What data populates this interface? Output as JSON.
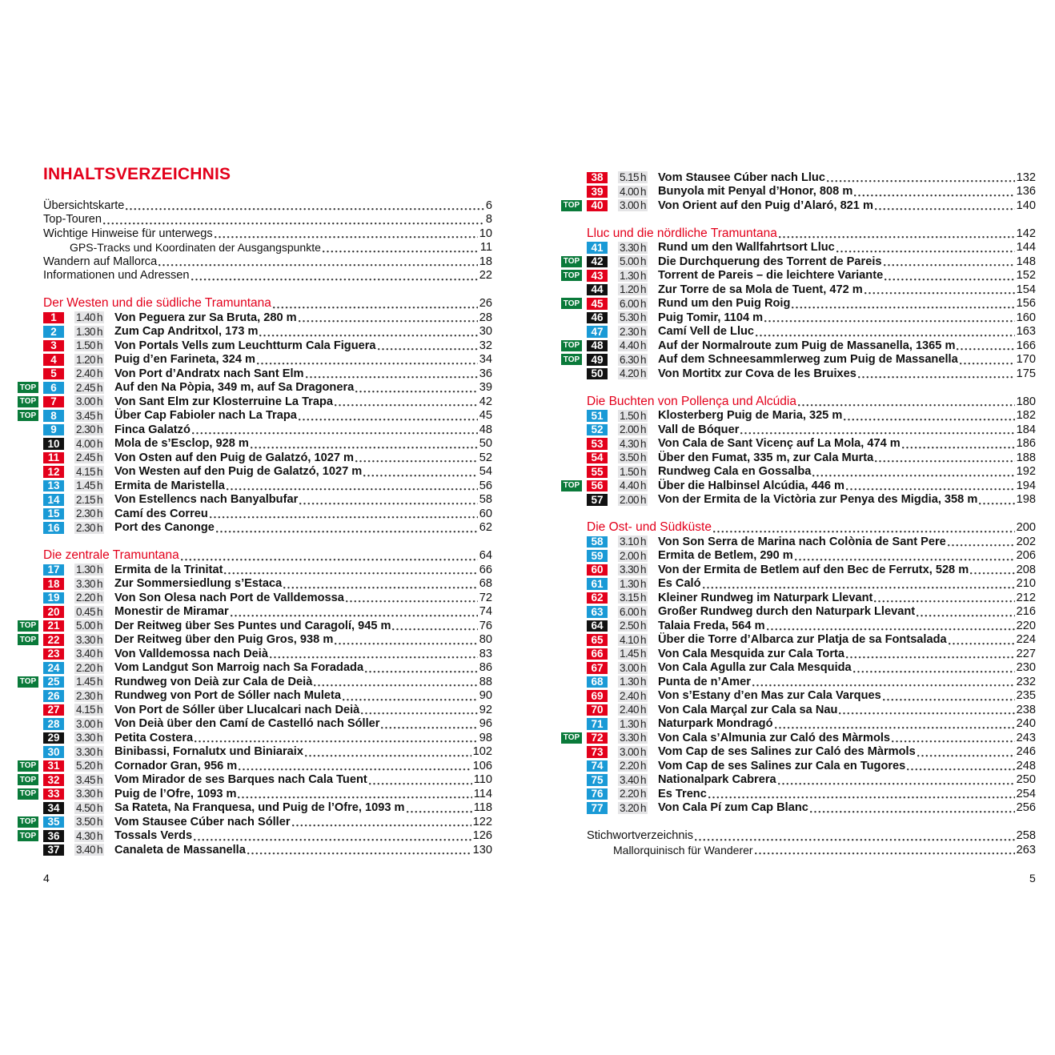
{
  "title": "INHALTSVERZEICHNIS",
  "colors": {
    "red": "#e3001b",
    "blue": "#1a9ad6",
    "black": "#111111",
    "top": "#0a7a3a",
    "section": "#e3001b"
  },
  "top_label": "TOP",
  "time_unit": "h",
  "page_numbers": {
    "left": "4",
    "right": "5"
  },
  "left_column": [
    {
      "kind": "intro",
      "text": "Übersichtskarte",
      "page": "6"
    },
    {
      "kind": "intro",
      "text": "Top-Touren",
      "page": "8"
    },
    {
      "kind": "intro",
      "text": "Wichtige Hinweise für unterwegs",
      "page": "10"
    },
    {
      "kind": "sub",
      "text": "GPS-Tracks und Koordinaten der Ausgangspunkte",
      "page": "11"
    },
    {
      "kind": "intro",
      "text": "Wandern auf Mallorca",
      "page": "18"
    },
    {
      "kind": "intro",
      "text": "Informationen und Adressen",
      "page": "22"
    },
    {
      "kind": "blank"
    },
    {
      "kind": "section",
      "text": "Der Westen und die südliche Tramuntana",
      "page": "26"
    },
    {
      "n": "1",
      "c": "red",
      "time": "1.40",
      "text": "Von Peguera zur Sa Bruta, 280 m",
      "page": "28"
    },
    {
      "n": "2",
      "c": "blue",
      "time": "1.30",
      "text": "Zum Cap Andritxol, 173 m",
      "page": "30"
    },
    {
      "n": "3",
      "c": "red",
      "time": "1.50",
      "text": "Von Portals Vells zum Leuchtturm Cala Figuera",
      "page": "32"
    },
    {
      "n": "4",
      "c": "red",
      "time": "1.20",
      "text": "Puig d’en Farineta, 324 m",
      "page": "34"
    },
    {
      "n": "5",
      "c": "red",
      "time": "2.40",
      "text": "Von Port d’Andratx nach Sant Elm",
      "page": "36"
    },
    {
      "n": "6",
      "c": "blue",
      "top": true,
      "time": "2.45",
      "text": "Auf den Na Pòpia, 349 m, auf Sa Dragonera",
      "page": "39"
    },
    {
      "n": "7",
      "c": "red",
      "top": true,
      "time": "3.00",
      "text": "Von Sant Elm zur Klosterruine La Trapa",
      "page": "42"
    },
    {
      "n": "8",
      "c": "blue",
      "top": true,
      "time": "3.45",
      "text": "Über Cap Fabioler nach La Trapa",
      "page": "45"
    },
    {
      "n": "9",
      "c": "blue",
      "time": "2.30",
      "text": "Finca Galatzó",
      "page": "48"
    },
    {
      "n": "10",
      "c": "black",
      "time": "4.00",
      "text": "Mola de s’Esclop, 928 m",
      "page": "50"
    },
    {
      "n": "11",
      "c": "red",
      "time": "2.45",
      "text": "Von Osten auf den Puig de Galatzó, 1027 m",
      "page": "52"
    },
    {
      "n": "12",
      "c": "red",
      "time": "4.15",
      "text": "Von Westen auf den Puig de Galatzó, 1027 m",
      "page": "54"
    },
    {
      "n": "13",
      "c": "blue",
      "time": "1.45",
      "text": "Ermita de Maristella",
      "page": "56"
    },
    {
      "n": "14",
      "c": "blue",
      "time": "2.15",
      "text": "Von Estellencs nach Banyalbufar",
      "page": "58"
    },
    {
      "n": "15",
      "c": "blue",
      "time": "2.30",
      "text": "Camí des Correu",
      "page": "60"
    },
    {
      "n": "16",
      "c": "blue",
      "time": "2.30",
      "text": "Port des Canonge",
      "page": "62"
    },
    {
      "kind": "blank"
    },
    {
      "kind": "section",
      "text": "Die zentrale Tramuntana",
      "page": "64"
    },
    {
      "n": "17",
      "c": "blue",
      "time": "1.30",
      "text": "Ermita de la Trinitat",
      "page": "66"
    },
    {
      "n": "18",
      "c": "red",
      "time": "3.30",
      "text": "Zur Sommersiedlung s’Estaca",
      "page": "68"
    },
    {
      "n": "19",
      "c": "blue",
      "time": "2.20",
      "text": "Von Son Olesa nach Port de Valldemossa",
      "page": "72"
    },
    {
      "n": "20",
      "c": "red",
      "time": "0.45",
      "text": "Monestir de Miramar",
      "page": "74"
    },
    {
      "n": "21",
      "c": "red",
      "top": true,
      "time": "5.00",
      "text": "Der Reitweg über Ses Puntes und Caragolí, 945 m",
      "page": "76"
    },
    {
      "n": "22",
      "c": "red",
      "top": true,
      "time": "3.30",
      "text": "Der Reitweg über den Puig Gros, 938 m",
      "page": "80"
    },
    {
      "n": "23",
      "c": "red",
      "time": "3.40",
      "text": "Von Valldemossa nach Deià",
      "page": "83"
    },
    {
      "n": "24",
      "c": "blue",
      "time": "2.20",
      "text": "Vom Landgut Son Marroig nach Sa Foradada",
      "page": "86"
    },
    {
      "n": "25",
      "c": "blue",
      "top": true,
      "time": "1.45",
      "text": "Rundweg von Deià zur Cala de Deià",
      "page": "88"
    },
    {
      "n": "26",
      "c": "blue",
      "time": "2.30",
      "text": "Rundweg von Port de Sóller nach Muleta",
      "page": "90"
    },
    {
      "n": "27",
      "c": "red",
      "time": "4.15",
      "text": "Von Port de Sóller über Llucalcari nach Deià",
      "page": "92"
    },
    {
      "n": "28",
      "c": "blue",
      "time": "3.00",
      "text": "Von Deià über den Camí de Castelló nach Sóller",
      "page": "96"
    },
    {
      "n": "29",
      "c": "black",
      "time": "3.30",
      "text": "Petita Costera",
      "page": "98"
    },
    {
      "n": "30",
      "c": "blue",
      "time": "3.30",
      "text": "Binibassi, Fornalutx und Biniaraix",
      "page": "102"
    },
    {
      "n": "31",
      "c": "red",
      "top": true,
      "time": "5.20",
      "text": "Cornador Gran, 956 m",
      "page": "106"
    },
    {
      "n": "32",
      "c": "red",
      "top": true,
      "time": "3.45",
      "text": "Vom Mirador de ses Barques nach Cala Tuent",
      "page": "110"
    },
    {
      "n": "33",
      "c": "red",
      "top": true,
      "time": "3.30",
      "text": "Puig de l’Ofre, 1093 m",
      "page": "114"
    },
    {
      "n": "34",
      "c": "black",
      "time": "4.50",
      "text": "Sa Rateta, Na Franquesa, und Puig de l’Ofre, 1093 m",
      "page": "118"
    },
    {
      "n": "35",
      "c": "blue",
      "top": true,
      "time": "3.50",
      "text": "Vom Stausee Cúber nach Sóller",
      "page": "122"
    },
    {
      "n": "36",
      "c": "black",
      "top": true,
      "time": "4.30",
      "text": "Tossals Verds",
      "page": "126"
    },
    {
      "n": "37",
      "c": "black",
      "time": "3.40",
      "text": "Canaleta de Massanella",
      "page": "130"
    }
  ],
  "right_column": [
    {
      "n": "38",
      "c": "red",
      "time": "5.15",
      "text": "Vom Stausee Cúber nach Lluc",
      "page": "132"
    },
    {
      "n": "39",
      "c": "red",
      "time": "4.00",
      "text": "Bunyola mit Penyal d’Honor, 808 m",
      "page": "136"
    },
    {
      "n": "40",
      "c": "red",
      "top": true,
      "time": "3.00",
      "text": "Von Orient auf den Puig d’Alaró, 821 m",
      "page": "140"
    },
    {
      "kind": "blank"
    },
    {
      "kind": "section",
      "text": "Lluc und die nördliche Tramuntana",
      "page": "142"
    },
    {
      "n": "41",
      "c": "blue",
      "time": "3.30",
      "text": "Rund um den Wallfahrtsort Lluc",
      "page": "144"
    },
    {
      "n": "42",
      "c": "black",
      "top": true,
      "time": "5.00",
      "text": "Die Durchquerung des Torrent de Pareis",
      "page": "148"
    },
    {
      "n": "43",
      "c": "red",
      "top": true,
      "time": "1.30",
      "text": "Torrent de Pareis – die leichtere Variante",
      "page": "152"
    },
    {
      "n": "44",
      "c": "black",
      "time": "1.20",
      "text": "Zur Torre de sa Mola de Tuent, 472 m",
      "page": "154"
    },
    {
      "n": "45",
      "c": "red",
      "top": true,
      "time": "6.00",
      "text": "Rund um den Puig Roig",
      "page": "156"
    },
    {
      "n": "46",
      "c": "black",
      "time": "5.30",
      "text": "Puig Tomir, 1104 m",
      "page": "160"
    },
    {
      "n": "47",
      "c": "blue",
      "time": "2.30",
      "text": "Camí Vell de Lluc",
      "page": "163"
    },
    {
      "n": "48",
      "c": "black",
      "top": true,
      "time": "4.40",
      "text": "Auf der Normalroute zum Puig de Massanella, 1365 m",
      "page": "166"
    },
    {
      "n": "49",
      "c": "black",
      "top": true,
      "time": "6.30",
      "text": "Auf dem Schneesammlerweg zum Puig de Massanella",
      "page": "170"
    },
    {
      "n": "50",
      "c": "black",
      "time": "4.20",
      "text": "Von Mortitx zur Cova de les Bruixes",
      "page": "175"
    },
    {
      "kind": "blank"
    },
    {
      "kind": "section",
      "text": "Die Buchten von Pollença und Alcúdia",
      "page": "180"
    },
    {
      "n": "51",
      "c": "blue",
      "time": "1.50",
      "text": "Klosterberg Puig de Maria, 325 m",
      "page": "182"
    },
    {
      "n": "52",
      "c": "blue",
      "time": "2.00",
      "text": "Vall de Bóquer",
      "page": "184"
    },
    {
      "n": "53",
      "c": "red",
      "time": "4.30",
      "text": "Von Cala de Sant Vicenç auf La Mola, 474 m",
      "page": "186"
    },
    {
      "n": "54",
      "c": "red",
      "time": "3.50",
      "text": "Über den Fumat, 335 m, zur Cala Murta",
      "page": "188"
    },
    {
      "n": "55",
      "c": "red",
      "time": "1.50",
      "text": "Rundweg Cala en Gossalba",
      "page": "192"
    },
    {
      "n": "56",
      "c": "red",
      "top": true,
      "time": "4.40",
      "text": "Über die Halbinsel Alcúdia, 446 m",
      "page": "194"
    },
    {
      "n": "57",
      "c": "black",
      "time": "2.00",
      "text": "Von der Ermita de la Victòria zur Penya des Migdia, 358 m",
      "page": "198"
    },
    {
      "kind": "blank"
    },
    {
      "kind": "section",
      "text": "Die Ost- und Südküste",
      "page": "200"
    },
    {
      "n": "58",
      "c": "blue",
      "time": "3.10",
      "text": "Von Son Serra de Marina nach Colònia de Sant Pere",
      "page": "202"
    },
    {
      "n": "59",
      "c": "blue",
      "time": "2.00",
      "text": "Ermita de Betlem, 290 m",
      "page": "206"
    },
    {
      "n": "60",
      "c": "red",
      "time": "3.30",
      "text": "Von der Ermita de Betlem auf den Bec de Ferrutx, 528 m",
      "page": "208"
    },
    {
      "n": "61",
      "c": "blue",
      "time": "1.30",
      "text": "Es Caló",
      "page": "210"
    },
    {
      "n": "62",
      "c": "red",
      "time": "3.15",
      "text": "Kleiner Rundweg im Naturpark Llevant",
      "page": "212"
    },
    {
      "n": "63",
      "c": "blue",
      "time": "6.00",
      "text": "Großer Rundweg durch den Naturpark Llevant",
      "page": "216"
    },
    {
      "n": "64",
      "c": "black",
      "time": "2.50",
      "text": "Talaia Freda, 564 m",
      "page": "220"
    },
    {
      "n": "65",
      "c": "red",
      "time": "4.10",
      "text": "Über die Torre d’Albarca zur Platja de sa Fontsalada",
      "page": "224"
    },
    {
      "n": "66",
      "c": "red",
      "time": "1.45",
      "text": "Von Cala Mesquida zur Cala Torta",
      "page": "227"
    },
    {
      "n": "67",
      "c": "red",
      "time": "3.00",
      "text": "Von Cala Agulla zur Cala Mesquida",
      "page": "230"
    },
    {
      "n": "68",
      "c": "blue",
      "time": "1.30",
      "text": "Punta de n’Amer",
      "page": "232"
    },
    {
      "n": "69",
      "c": "red",
      "time": "2.40",
      "text": "Von s’Estany d’en Mas zur Cala Varques",
      "page": "235"
    },
    {
      "n": "70",
      "c": "red",
      "time": "2.40",
      "text": "Von Cala Marçal zur Cala sa Nau",
      "page": "238"
    },
    {
      "n": "71",
      "c": "blue",
      "time": "1.30",
      "text": "Naturpark Mondragó",
      "page": "240"
    },
    {
      "n": "72",
      "c": "red",
      "top": true,
      "time": "3.30",
      "text": "Von Cala s’Almunia zur Caló des Màrmols",
      "page": "243"
    },
    {
      "n": "73",
      "c": "red",
      "time": "3.00",
      "text": "Vom Cap de ses Salines zur Caló des Màrmols",
      "page": "246"
    },
    {
      "n": "74",
      "c": "blue",
      "time": "2.20",
      "text": "Vom Cap de ses Salines zur Cala en Tugores",
      "page": "248"
    },
    {
      "n": "75",
      "c": "blue",
      "time": "3.40",
      "text": "Nationalpark Cabrera",
      "page": "250"
    },
    {
      "n": "76",
      "c": "blue",
      "time": "2.20",
      "text": "Es Trenc",
      "page": "254"
    },
    {
      "n": "77",
      "c": "blue",
      "time": "3.20",
      "text": "Von Cala Pí zum Cap Blanc",
      "page": "256"
    },
    {
      "kind": "blank"
    },
    {
      "kind": "intro",
      "text": "Stichwortverzeichnis",
      "page": "258"
    },
    {
      "kind": "sub",
      "text": "Mallorquinisch für Wanderer",
      "page": "263"
    }
  ]
}
